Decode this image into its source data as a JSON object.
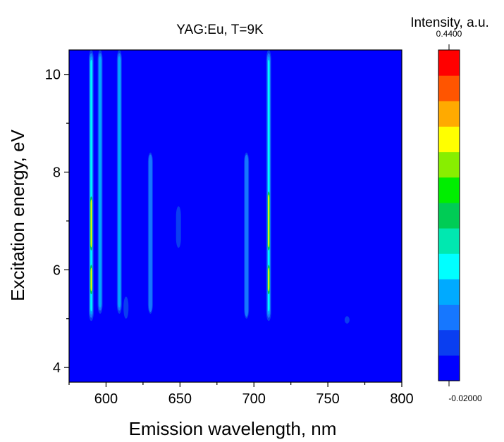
{
  "chart_data": {
    "type": "heatmap",
    "title": "YAG:Eu, T=9K",
    "xlabel": "Emission wavelength, nm",
    "ylabel": "Excitation energy, eV",
    "xlim": [
      575,
      800
    ],
    "ylim": [
      3.7,
      10.5
    ],
    "x_ticks": [
      600,
      650,
      700,
      750,
      800
    ],
    "y_ticks": [
      4,
      6,
      8,
      10
    ],
    "colorbar": {
      "title": "Intensity, a.u.",
      "max_label": "0.4400",
      "min_label": "-0.02000",
      "min": -0.02,
      "max": 0.44,
      "levels": 12,
      "colors": [
        "#0000ff",
        "#0a3ef0",
        "#1677ff",
        "#00aaff",
        "#00ffff",
        "#00e8b0",
        "#00cc55",
        "#00ee00",
        "#88ee00",
        "#ffff00",
        "#ffaa00",
        "#ff5500",
        "#ff0000"
      ]
    },
    "background_value": 0.0,
    "emission_lines": [
      {
        "x": 590,
        "y_min": 4.95,
        "y_max": 10.5,
        "peak": 0.3,
        "hot_spots": [
          {
            "y_min": 6.4,
            "y_max": 7.5
          },
          {
            "y_min": 5.5,
            "y_max": 6.1
          }
        ]
      },
      {
        "x": 596,
        "y_min": 5.1,
        "y_max": 10.5,
        "peak": 0.12
      },
      {
        "x": 609,
        "y_min": 5.1,
        "y_max": 10.5,
        "peak": 0.09
      },
      {
        "x": 613.5,
        "y_min": 5.0,
        "y_max": 5.45,
        "peak": 0.04
      },
      {
        "x": 630,
        "y_min": 5.1,
        "y_max": 8.4,
        "peak": 0.06
      },
      {
        "x": 649,
        "y_min": 6.45,
        "y_max": 7.3,
        "peak": 0.04
      },
      {
        "x": 695,
        "y_min": 5.0,
        "y_max": 8.4,
        "peak": 0.06
      },
      {
        "x": 710,
        "y_min": 4.95,
        "y_max": 10.5,
        "peak": 0.3,
        "hot_spots": [
          {
            "y_min": 6.4,
            "y_max": 7.6
          },
          {
            "y_min": 5.5,
            "y_max": 6.1
          }
        ]
      },
      {
        "x": 763,
        "y_min": 4.9,
        "y_max": 5.05,
        "peak": 0.03
      }
    ]
  }
}
